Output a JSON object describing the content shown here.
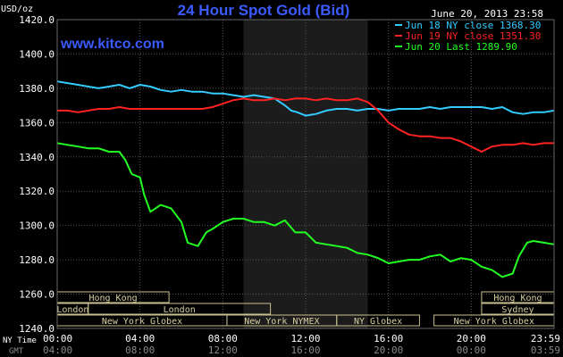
{
  "chart_data": {
    "type": "line",
    "title": "24 Hour Spot Gold (Bid)",
    "timestamp": "June 20, 2013 23:58",
    "website": "www.kitco.com",
    "ylabel": "USD/oz",
    "ylim": [
      1240,
      1420
    ],
    "y_ticks": [
      "1420.0",
      "1400.0",
      "1380.0",
      "1360.0",
      "1340.0",
      "1320.0",
      "1300.0",
      "1280.0",
      "1260.0",
      "1240.0"
    ],
    "x_ticks_ny": [
      "00:00",
      "04:00",
      "08:00",
      "12:00",
      "16:00",
      "20:00",
      "23:59"
    ],
    "x_ticks_gmt": [
      "04:00",
      "08:00",
      "12:00",
      "16:00",
      "20:00",
      "00:00",
      "03:59"
    ],
    "x_label_ny": "NY Time",
    "x_label_gmt": "GMT",
    "x_range_hours": [
      0,
      24
    ],
    "shaded_region_hours": [
      9,
      15
    ],
    "legend_position": "top-right",
    "series": [
      {
        "name": "Jun 18 NY close 1368.30",
        "color": "#33ccff",
        "points": [
          [
            0,
            1384
          ],
          [
            0.5,
            1383
          ],
          [
            1,
            1382
          ],
          [
            1.5,
            1381
          ],
          [
            2,
            1380
          ],
          [
            2.5,
            1381
          ],
          [
            3,
            1382
          ],
          [
            3.5,
            1380
          ],
          [
            4,
            1382
          ],
          [
            4.5,
            1381
          ],
          [
            5,
            1379
          ],
          [
            5.5,
            1378
          ],
          [
            6,
            1379
          ],
          [
            6.5,
            1378
          ],
          [
            7,
            1378
          ],
          [
            7.5,
            1377
          ],
          [
            8,
            1377
          ],
          [
            8.5,
            1376
          ],
          [
            9,
            1375
          ],
          [
            9.5,
            1376
          ],
          [
            10,
            1375
          ],
          [
            10.5,
            1374
          ],
          [
            11,
            1370
          ],
          [
            11.3,
            1367
          ],
          [
            11.6,
            1366
          ],
          [
            12,
            1364
          ],
          [
            12.5,
            1365
          ],
          [
            13,
            1367
          ],
          [
            13.5,
            1368
          ],
          [
            14,
            1368
          ],
          [
            14.5,
            1367
          ],
          [
            15,
            1368
          ],
          [
            15.5,
            1368
          ],
          [
            16,
            1367
          ],
          [
            16.5,
            1368
          ],
          [
            17,
            1368
          ],
          [
            17.5,
            1368
          ],
          [
            18,
            1369
          ],
          [
            18.5,
            1368
          ],
          [
            19,
            1369
          ],
          [
            19.5,
            1369
          ],
          [
            20,
            1369
          ],
          [
            20.5,
            1369
          ],
          [
            21,
            1368
          ],
          [
            21.5,
            1369
          ],
          [
            22,
            1366
          ],
          [
            22.5,
            1365
          ],
          [
            23,
            1366
          ],
          [
            23.5,
            1366
          ],
          [
            24,
            1367
          ]
        ]
      },
      {
        "name": "Jun 19 NY close 1351.30",
        "color": "#ff2222",
        "points": [
          [
            0,
            1367
          ],
          [
            0.5,
            1367
          ],
          [
            1,
            1366
          ],
          [
            1.5,
            1367
          ],
          [
            2,
            1368
          ],
          [
            2.5,
            1368
          ],
          [
            3,
            1369
          ],
          [
            3.5,
            1368
          ],
          [
            4,
            1368
          ],
          [
            4.5,
            1368
          ],
          [
            5,
            1368
          ],
          [
            5.5,
            1368
          ],
          [
            6,
            1368
          ],
          [
            6.5,
            1368
          ],
          [
            7,
            1368
          ],
          [
            7.5,
            1369
          ],
          [
            8,
            1371
          ],
          [
            8.5,
            1373
          ],
          [
            9,
            1374
          ],
          [
            9.5,
            1373
          ],
          [
            10,
            1373
          ],
          [
            10.5,
            1374
          ],
          [
            11,
            1373
          ],
          [
            11.5,
            1374
          ],
          [
            12,
            1374
          ],
          [
            12.5,
            1373
          ],
          [
            13,
            1374
          ],
          [
            13.5,
            1373
          ],
          [
            14,
            1373
          ],
          [
            14.5,
            1374
          ],
          [
            15,
            1372
          ],
          [
            15.5,
            1367
          ],
          [
            16,
            1360
          ],
          [
            16.5,
            1356
          ],
          [
            17,
            1353
          ],
          [
            17.5,
            1352
          ],
          [
            18,
            1352
          ],
          [
            18.5,
            1351
          ],
          [
            19,
            1351
          ],
          [
            19.5,
            1349
          ],
          [
            20,
            1346
          ],
          [
            20.5,
            1343
          ],
          [
            21,
            1346
          ],
          [
            21.5,
            1347
          ],
          [
            22,
            1347
          ],
          [
            22.5,
            1348
          ],
          [
            23,
            1347
          ],
          [
            23.5,
            1348
          ],
          [
            24,
            1348
          ]
        ]
      },
      {
        "name": "Jun 20 Last 1289.90",
        "color": "#22ff22",
        "points": [
          [
            0,
            1348
          ],
          [
            0.5,
            1347
          ],
          [
            1,
            1346
          ],
          [
            1.5,
            1345
          ],
          [
            2,
            1345
          ],
          [
            2.5,
            1343
          ],
          [
            3,
            1343
          ],
          [
            3.3,
            1338
          ],
          [
            3.6,
            1330
          ],
          [
            4,
            1328
          ],
          [
            4.2,
            1318
          ],
          [
            4.5,
            1308
          ],
          [
            5,
            1312
          ],
          [
            5.5,
            1310
          ],
          [
            6,
            1302
          ],
          [
            6.3,
            1290
          ],
          [
            6.8,
            1288
          ],
          [
            7.2,
            1296
          ],
          [
            7.5,
            1298
          ],
          [
            8,
            1302
          ],
          [
            8.5,
            1304
          ],
          [
            9,
            1304
          ],
          [
            9.5,
            1302
          ],
          [
            10,
            1302
          ],
          [
            10.5,
            1300
          ],
          [
            11,
            1303
          ],
          [
            11.5,
            1296
          ],
          [
            12,
            1296
          ],
          [
            12.5,
            1290
          ],
          [
            13,
            1289
          ],
          [
            13.5,
            1288
          ],
          [
            14,
            1287
          ],
          [
            14.5,
            1284
          ],
          [
            15,
            1283
          ],
          [
            15.5,
            1281
          ],
          [
            16,
            1278
          ],
          [
            16.5,
            1279
          ],
          [
            17,
            1280
          ],
          [
            17.5,
            1280
          ],
          [
            18,
            1282
          ],
          [
            18.5,
            1283
          ],
          [
            19,
            1279
          ],
          [
            19.5,
            1281
          ],
          [
            20,
            1280
          ],
          [
            20.5,
            1276
          ],
          [
            21,
            1274
          ],
          [
            21.5,
            1270
          ],
          [
            22,
            1272
          ],
          [
            22.3,
            1282
          ],
          [
            22.7,
            1290
          ],
          [
            23,
            1291
          ],
          [
            23.5,
            1290
          ],
          [
            24,
            1289
          ]
        ]
      }
    ],
    "sessions": [
      {
        "label": "Hong Kong",
        "row": 0,
        "start": 0,
        "end": 5.4
      },
      {
        "label": "Hong Kong",
        "row": 0,
        "start": 20.5,
        "end": 24
      },
      {
        "label": "London",
        "row": 1,
        "start": 0,
        "end": 1.5
      },
      {
        "label": "London",
        "row": 1,
        "start": 1.5,
        "end": 10.3
      },
      {
        "label": "Sydney",
        "row": 1,
        "start": 20.5,
        "end": 24
      },
      {
        "label": "New York Globex",
        "row": 2,
        "start": 0,
        "end": 8.2
      },
      {
        "label": "New York NYMEX",
        "row": 2,
        "start": 8.2,
        "end": 13.5
      },
      {
        "label": "NY Globex",
        "row": 2,
        "start": 13.5,
        "end": 17.5
      },
      {
        "label": "New York Globex",
        "row": 2,
        "start": 18.2,
        "end": 24
      }
    ]
  }
}
